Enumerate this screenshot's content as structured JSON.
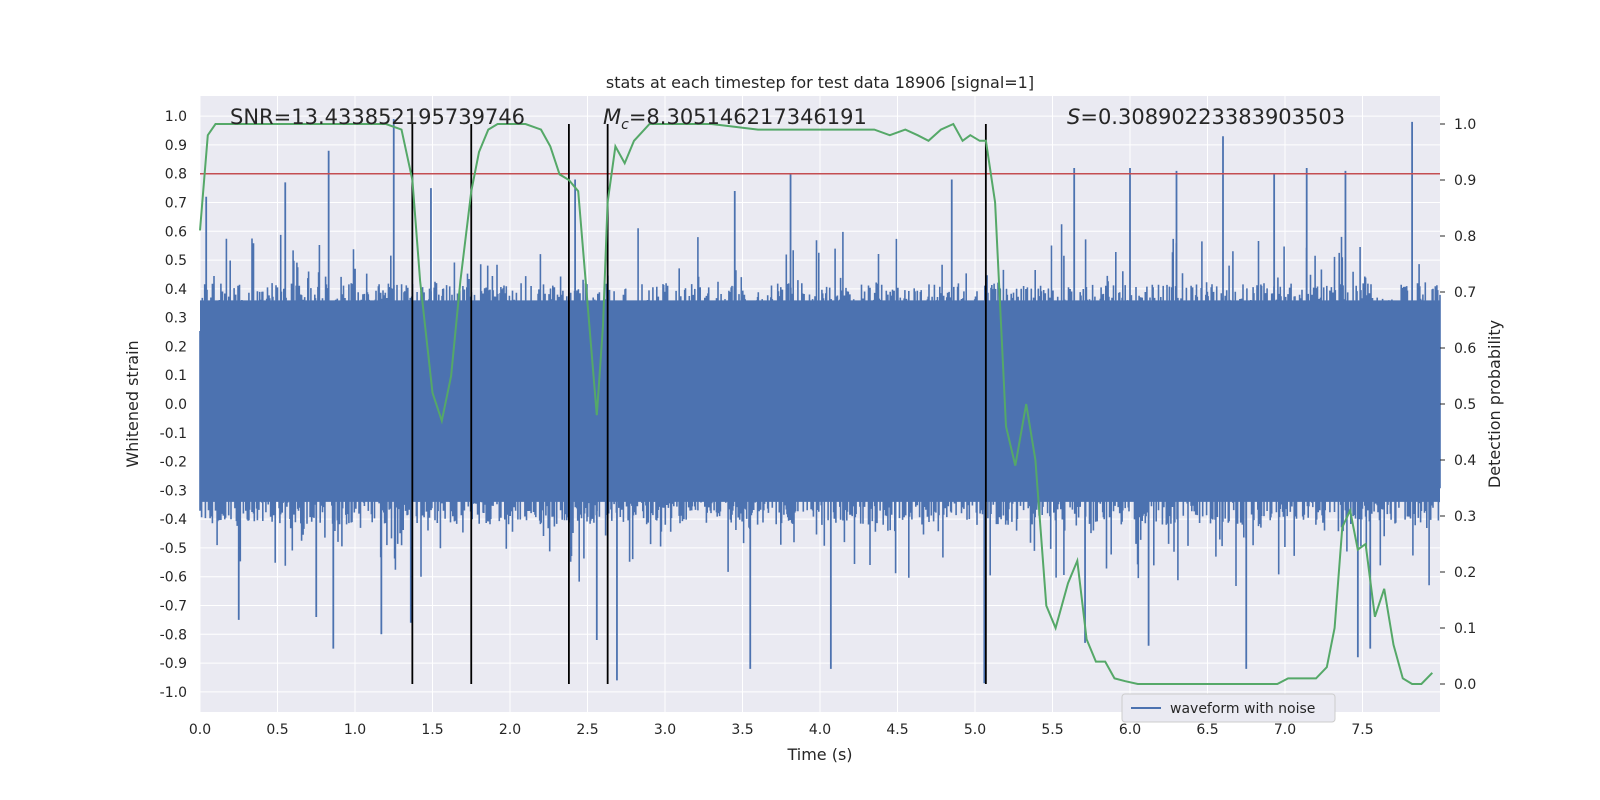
{
  "chart_data": {
    "type": "line",
    "title": "stats at each timestep for test data 18906 [signal=1]",
    "xlabel": "Time (s)",
    "ylabel": "Whitened strain",
    "ylabel_right": "Detection probability",
    "xlim": [
      0.0,
      8.0
    ],
    "ylim": [
      -1.07,
      1.07
    ],
    "ylim_right": [
      -0.05,
      1.05
    ],
    "x_ticks": [
      "0.0",
      "0.5",
      "1.0",
      "1.5",
      "2.0",
      "2.5",
      "3.0",
      "3.5",
      "4.0",
      "4.5",
      "5.0",
      "5.5",
      "6.0",
      "6.5",
      "7.0",
      "7.5"
    ],
    "y_ticks": [
      "1.0",
      "0.9",
      "0.8",
      "0.7",
      "0.6",
      "0.5",
      "0.4",
      "0.3",
      "0.2",
      "0.1",
      "0.0",
      "-0.1",
      "-0.2",
      "-0.3",
      "-0.4",
      "-0.5",
      "-0.6",
      "-0.7",
      "-0.8",
      "-0.9",
      "-1.0"
    ],
    "y_ticks_right": [
      "1.0",
      "0.9",
      "0.8",
      "0.7",
      "0.6",
      "0.5",
      "0.4",
      "0.3",
      "0.2",
      "0.1",
      "0.0"
    ],
    "annotations": {
      "snr": "SNR=13.433852195739746",
      "mc_symbol": "M",
      "mc_sub": "c",
      "mc_value": "=8.305146217346191",
      "s_symbol": "S",
      "s_value": "=0.30890223383903503"
    },
    "threshold": 0.8,
    "vertical_lines": [
      1.37,
      1.75,
      2.38,
      2.63,
      5.07
    ],
    "vline_range": [
      0.0,
      1.0
    ],
    "legend": {
      "label": "waveform with noise",
      "location": "lower right"
    },
    "series": [
      {
        "name": "waveform with noise",
        "axis": "left",
        "color": "#4c72b0",
        "seed": 18906,
        "samples": 1600,
        "typical_amplitude": 0.42,
        "spikes": [
          {
            "x": 0.04,
            "y": 0.72
          },
          {
            "x": 0.25,
            "y": -0.75
          },
          {
            "x": 0.55,
            "y": 0.77
          },
          {
            "x": 0.75,
            "y": -0.74
          },
          {
            "x": 0.83,
            "y": 0.88
          },
          {
            "x": 0.86,
            "y": -0.85
          },
          {
            "x": 1.17,
            "y": -0.8
          },
          {
            "x": 1.25,
            "y": 0.99
          },
          {
            "x": 1.36,
            "y": -0.76
          },
          {
            "x": 1.49,
            "y": 0.75
          },
          {
            "x": 2.42,
            "y": 0.78
          },
          {
            "x": 2.56,
            "y": -0.82
          },
          {
            "x": 2.69,
            "y": -0.96
          },
          {
            "x": 3.45,
            "y": 0.74
          },
          {
            "x": 3.55,
            "y": -0.92
          },
          {
            "x": 3.81,
            "y": 0.8
          },
          {
            "x": 4.07,
            "y": -0.92
          },
          {
            "x": 4.85,
            "y": 0.78
          },
          {
            "x": 5.06,
            "y": -0.97
          },
          {
            "x": 5.64,
            "y": 0.82
          },
          {
            "x": 5.71,
            "y": -0.83
          },
          {
            "x": 6.0,
            "y": 0.82
          },
          {
            "x": 6.12,
            "y": -0.84
          },
          {
            "x": 6.3,
            "y": 0.81
          },
          {
            "x": 6.6,
            "y": 0.93
          },
          {
            "x": 6.75,
            "y": -0.92
          },
          {
            "x": 6.93,
            "y": 0.8
          },
          {
            "x": 7.14,
            "y": 0.82
          },
          {
            "x": 7.39,
            "y": 0.81
          },
          {
            "x": 7.47,
            "y": -0.88
          },
          {
            "x": 7.55,
            "y": -0.85
          },
          {
            "x": 7.82,
            "y": 0.98
          }
        ]
      },
      {
        "name": "detection probability",
        "axis": "right",
        "color": "#55a868",
        "x": [
          0.0,
          0.05,
          0.1,
          0.2,
          0.3,
          0.5,
          0.7,
          0.9,
          1.1,
          1.2,
          1.3,
          1.37,
          1.42,
          1.5,
          1.56,
          1.62,
          1.68,
          1.75,
          1.8,
          1.86,
          1.92,
          2.0,
          2.1,
          2.2,
          2.26,
          2.32,
          2.38,
          2.44,
          2.5,
          2.56,
          2.6,
          2.63,
          2.68,
          2.74,
          2.8,
          2.9,
          3.0,
          3.3,
          3.6,
          3.9,
          4.2,
          4.35,
          4.45,
          4.55,
          4.63,
          4.7,
          4.78,
          4.86,
          4.92,
          4.97,
          5.03,
          5.07,
          5.13,
          5.2,
          5.26,
          5.33,
          5.39,
          5.46,
          5.52,
          5.6,
          5.66,
          5.72,
          5.78,
          5.84,
          5.9,
          5.97,
          6.05,
          6.2,
          6.4,
          6.6,
          6.8,
          6.95,
          7.02,
          7.1,
          7.2,
          7.27,
          7.32,
          7.37,
          7.42,
          7.47,
          7.52,
          7.58,
          7.64,
          7.7,
          7.76,
          7.82,
          7.88,
          7.95
        ],
        "y": [
          0.81,
          0.98,
          1.0,
          1.0,
          1.0,
          1.0,
          1.0,
          1.0,
          1.0,
          1.0,
          0.99,
          0.9,
          0.72,
          0.52,
          0.47,
          0.55,
          0.72,
          0.88,
          0.95,
          0.99,
          1.0,
          1.0,
          1.0,
          0.99,
          0.96,
          0.91,
          0.9,
          0.88,
          0.68,
          0.48,
          0.64,
          0.86,
          0.96,
          0.93,
          0.97,
          1.0,
          1.0,
          1.0,
          0.99,
          0.99,
          0.99,
          0.99,
          0.98,
          0.99,
          0.98,
          0.97,
          0.99,
          1.0,
          0.97,
          0.98,
          0.97,
          0.97,
          0.86,
          0.46,
          0.39,
          0.5,
          0.4,
          0.14,
          0.1,
          0.18,
          0.22,
          0.08,
          0.04,
          0.04,
          0.01,
          0.005,
          0.0,
          0.0,
          0.0,
          0.0,
          0.0,
          0.0,
          0.01,
          0.01,
          0.01,
          0.03,
          0.1,
          0.28,
          0.31,
          0.24,
          0.25,
          0.12,
          0.17,
          0.07,
          0.01,
          0.0,
          0.0,
          0.02
        ]
      },
      {
        "name": "threshold",
        "axis": "left",
        "color": "#c44e52",
        "y": 0.8
      }
    ]
  }
}
